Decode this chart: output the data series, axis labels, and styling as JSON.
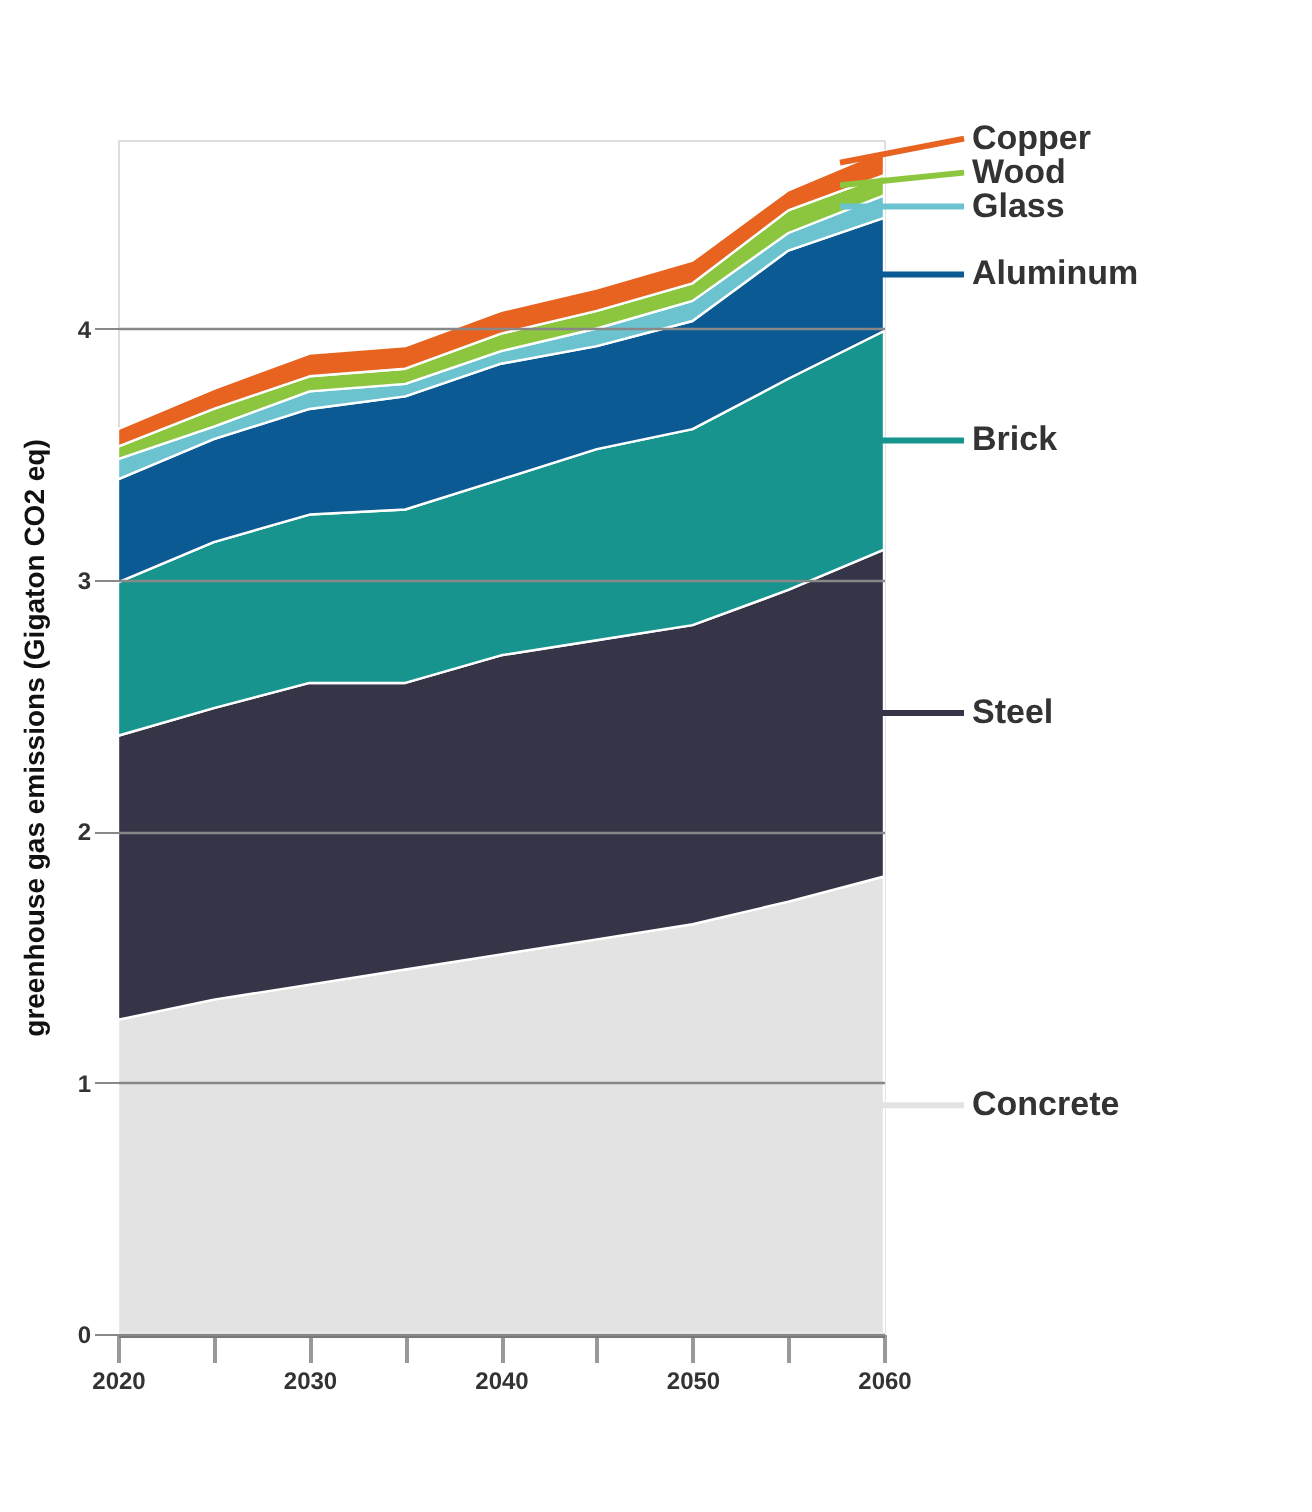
{
  "chart_data": {
    "type": "area",
    "stacked": true,
    "ylabel": "greenhouse gas emissions (Gigaton CO2 eq)",
    "x": [
      2020,
      2025,
      2030,
      2035,
      2040,
      2045,
      2050,
      2055,
      2060
    ],
    "xlim": [
      2020,
      2060
    ],
    "xticks": [
      2020,
      {
        "value": 2025,
        "label": null
      },
      2030,
      {
        "value": 2035,
        "label": null
      },
      2040,
      {
        "value": 2045,
        "label": null
      },
      2050,
      {
        "value": 2055,
        "label": null
      },
      2060
    ],
    "ylim": [
      0,
      4.75
    ],
    "yticks": [
      0,
      1,
      2,
      3,
      4
    ],
    "grid": "y",
    "legend": "right",
    "series": [
      {
        "name": "Concrete",
        "color": "#e3e3e3",
        "values": [
          1.25,
          1.33,
          1.39,
          1.45,
          1.51,
          1.57,
          1.63,
          1.72,
          1.82
        ]
      },
      {
        "name": "Steel",
        "color": "#363548",
        "values": [
          1.13,
          1.16,
          1.2,
          1.14,
          1.19,
          1.19,
          1.19,
          1.24,
          1.3
        ]
      },
      {
        "name": "Brick",
        "color": "#16948d",
        "values": [
          0.61,
          0.66,
          0.67,
          0.69,
          0.7,
          0.76,
          0.78,
          0.84,
          0.87
        ]
      },
      {
        "name": "Aluminum",
        "color": "#0b5a93",
        "values": [
          0.41,
          0.41,
          0.42,
          0.45,
          0.46,
          0.41,
          0.43,
          0.51,
          0.45
        ]
      },
      {
        "name": "Glass",
        "color": "#6cc3d0",
        "values": [
          0.08,
          0.05,
          0.07,
          0.05,
          0.05,
          0.07,
          0.08,
          0.07,
          0.09
        ]
      },
      {
        "name": "Wood",
        "color": "#8cc63f",
        "values": [
          0.05,
          0.07,
          0.06,
          0.06,
          0.07,
          0.07,
          0.07,
          0.09,
          0.08
        ]
      },
      {
        "name": "Copper",
        "color": "#e8631f",
        "values": [
          0.07,
          0.08,
          0.09,
          0.09,
          0.09,
          0.09,
          0.09,
          0.08,
          0.1
        ]
      }
    ]
  }
}
